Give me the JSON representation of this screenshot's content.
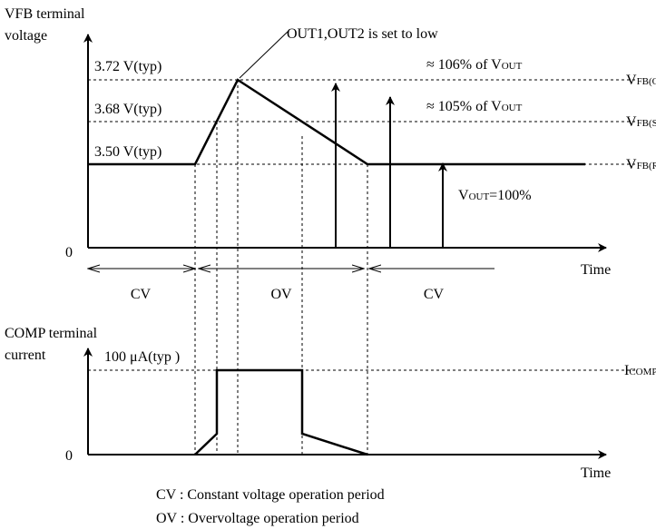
{
  "top_graph": {
    "axis_label": [
      "VFB terminal",
      "voltage"
    ],
    "levels": [
      {
        "label": "3.72 V(typ)",
        "name": "V",
        "sub": "FB(OVP)"
      },
      {
        "label": "3.68 V(typ)",
        "name": "V",
        "sub": "FB(SOVP)"
      },
      {
        "label": "3.50 V(typ)",
        "name": "V",
        "sub": "FB(REF)"
      }
    ],
    "annotation": "OUT1,OUT2 is set to low",
    "arrow_labels": [
      {
        "text": "≈ 106% of V",
        "sub": "OUT"
      },
      {
        "text": "≈ 105% of V",
        "sub": "OUT"
      },
      {
        "text": "V",
        "sub": "OUT",
        "tail": "=100%"
      }
    ],
    "origin": "0",
    "x_label": "Time"
  },
  "periods": [
    "CV",
    "OV",
    "CV"
  ],
  "bottom_graph": {
    "axis_label": [
      "COMP terminal",
      "current"
    ],
    "level_label": "100 μA(typ )",
    "level_name": "I",
    "level_sub": "COMP(SK)",
    "origin": "0",
    "x_label": "Time"
  },
  "legend": [
    "CV : Constant voltage operation period",
    "OV : Overvoltage operation period"
  ]
}
